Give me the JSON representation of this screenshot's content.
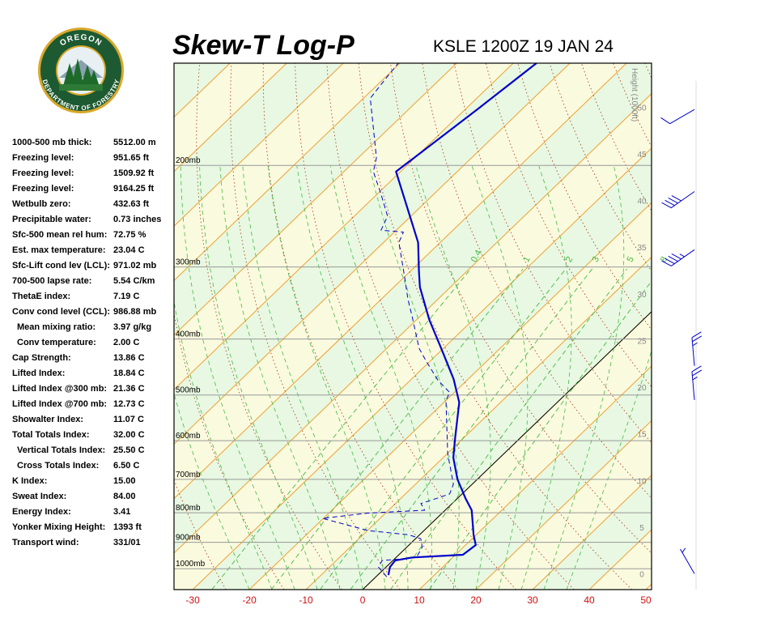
{
  "header": {
    "logo": {
      "top": "OREGON",
      "bottom": "DEPARTMENT OF FORESTRY"
    }
  },
  "indices": [
    {
      "label": "1000-500 mb thick:",
      "value": "5512.00 m"
    },
    {
      "label": "Freezing level:",
      "value": "951.65 ft"
    },
    {
      "label": "Freezing level:",
      "value": "1509.92 ft"
    },
    {
      "label": "Freezing level:",
      "value": "9164.25 ft"
    },
    {
      "label": "Wetbulb zero:",
      "value": "432.63 ft"
    },
    {
      "label": "Precipitable water:",
      "value": "0.73 inches"
    },
    {
      "label": "Sfc-500 mean rel hum:",
      "value": "72.75 %"
    },
    {
      "label": "Est. max temperature:",
      "value": "23.04 C"
    },
    {
      "label": "Sfc-Lift cond lev (LCL):",
      "value": "971.02 mb"
    },
    {
      "label": "700-500 lapse rate:",
      "value": "5.54 C/km"
    },
    {
      "label": "ThetaE index:",
      "value": "7.19 C"
    },
    {
      "label": "Conv cond level (CCL):",
      "value": "986.88 mb"
    },
    {
      "label": "Mean mixing ratio:",
      "value": "3.97 g/kg",
      "indent": true
    },
    {
      "label": "Conv temperature:",
      "value": "2.00 C",
      "indent": true
    },
    {
      "label": "Cap Strength:",
      "value": "13.86 C"
    },
    {
      "label": "Lifted Index:",
      "value": "18.84 C"
    },
    {
      "label": "Lifted Index @300 mb:",
      "value": "21.36 C"
    },
    {
      "label": "Lifted Index @700 mb:",
      "value": "12.73 C"
    },
    {
      "label": "Showalter Index:",
      "value": "11.07 C"
    },
    {
      "label": "Total Totals Index:",
      "value": "32.00 C"
    },
    {
      "label": "Vertical Totals Index:",
      "value": "25.50 C",
      "indent": true
    },
    {
      "label": "Cross Totals Index:",
      "value": "6.50 C",
      "indent": true
    },
    {
      "label": "K Index:",
      "value": "15.00"
    },
    {
      "label": "Sweat Index:",
      "value": "84.00"
    },
    {
      "label": "Energy Index:",
      "value": "3.41"
    },
    {
      "label": "Yonker Mixing Height:",
      "value": "1393 ft"
    },
    {
      "label": "Transport wind:",
      "value": "331/01"
    }
  ],
  "chart_data": {
    "type": "skewt",
    "title": "Skew-T Log-P",
    "subtitle": "KSLE 1200Z 19 JAN 24",
    "log_y": true,
    "xlim": [
      -33.3,
      51
    ],
    "xticks": [
      -30,
      -20,
      -10,
      0,
      10,
      20,
      30,
      40,
      50
    ],
    "ylim": [
      1087,
      133
    ],
    "yticks": [
      {
        "value": 1000,
        "label": "1000mb"
      },
      {
        "value": 900,
        "label": "900mb"
      },
      {
        "value": 800,
        "label": "800mb"
      },
      {
        "value": 700,
        "label": "700mb"
      },
      {
        "value": 600,
        "label": "600mb"
      },
      {
        "value": 500,
        "label": "500mb"
      },
      {
        "value": 400,
        "label": "400mb"
      },
      {
        "value": 300,
        "label": "300mb"
      },
      {
        "value": 200,
        "label": "200mb"
      }
    ],
    "y2label": "Height (1000ft)",
    "y2lim": [
      -1.6,
      54.8
    ],
    "y2ticks": [
      0,
      5,
      10,
      15,
      20,
      25,
      30,
      35,
      40,
      45,
      50
    ],
    "isotherm_color": "#f0a030",
    "dry_adiabat_color": "#b03010",
    "moist_adiabat_color": "#44bb44",
    "band_colors": [
      "#e8f8e2",
      "#fafadf"
    ],
    "series": [
      {
        "color": "#0000cc",
        "dash": false,
        "pressure": [
          1026,
          994,
          968,
          956,
          946,
          910,
          873,
          792,
          755,
          700,
          642,
          592,
          515,
          469,
          415,
          370,
          325,
          305,
          272,
          205,
          159,
          133
        ],
        "values": [
          1.9,
          0.7,
          0.4,
          2.9,
          11.3,
          11.8,
          9.5,
          4.7,
          1.4,
          -3.5,
          -8.2,
          -11.6,
          -17.3,
          -22.6,
          -30.4,
          -37.8,
          -45.4,
          -48.5,
          -53.9,
          -70.8,
          -67.8,
          -65.9
        ]
      },
      {
        "color": "#0000cc",
        "dash": true,
        "pressure": [
          1033,
          994,
          968,
          962,
          956,
          917,
          887,
          873,
          859,
          818,
          801,
          792,
          771,
          755,
          742,
          714,
          631,
          511,
          495,
          471,
          435,
          415,
          364,
          341,
          309,
          272,
          261,
          259,
          245,
          224,
          205,
          194,
          153,
          140,
          133
        ],
        "values": [
          1.9,
          -1.3,
          -1.9,
          1.1,
          3.6,
          2.7,
          0.9,
          -2.0,
          -9.8,
          -20.2,
          -13.0,
          -3.6,
          -5.5,
          -3.6,
          -2.2,
          -3.3,
          -10.0,
          -20.0,
          -20.8,
          -25.2,
          -31.0,
          -34.3,
          -41.6,
          -45.3,
          -50.5,
          -57.3,
          -58.4,
          -62.7,
          -64.1,
          -69.4,
          -74.8,
          -76.8,
          -88.8,
          -89.8,
          -90.3
        ]
      }
    ],
    "mixing_ratio": {
      "values": [
        0.4,
        1,
        2,
        3,
        5,
        8
      ],
      "color": "#44bb44"
    },
    "winds": {
      "pressure": [
        160,
        222,
        280,
        445,
        510,
        1020
      ],
      "direction": [
        240,
        235,
        235,
        355,
        355,
        330
      ],
      "speed": [
        10,
        40,
        45,
        25,
        25,
        5
      ],
      "color": "#0000cc"
    }
  }
}
